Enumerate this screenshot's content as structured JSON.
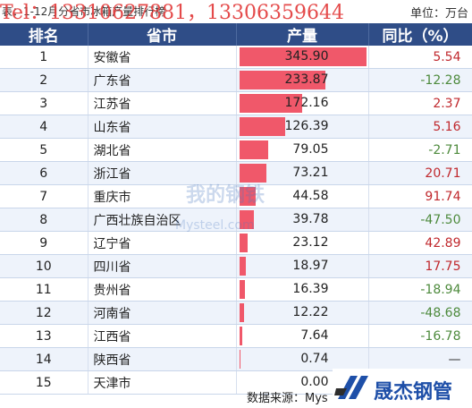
{
  "caption": {
    "title": "表：1-12月分省市冰箱产量排行榜",
    "overlay": "Tel：13310627881，13306359644",
    "unit": "单位：万台"
  },
  "headers": {
    "rank": "排名",
    "province": "省市",
    "production": "产量",
    "yoy": "同比（%）"
  },
  "colors": {
    "header_bg": "#2f4d87",
    "bar": "#f0586a",
    "positive": "#c0282d",
    "negative": "#4d8a3c"
  },
  "rows": [
    {
      "rank": "1",
      "province": "安徽省",
      "production": "345.90",
      "yoy": "5.54"
    },
    {
      "rank": "2",
      "province": "广东省",
      "production": "233.87",
      "yoy": "-12.28"
    },
    {
      "rank": "3",
      "province": "江苏省",
      "production": "172.16",
      "yoy": "2.37"
    },
    {
      "rank": "4",
      "province": "山东省",
      "production": "126.39",
      "yoy": "5.16"
    },
    {
      "rank": "5",
      "province": "湖北省",
      "production": "79.05",
      "yoy": "-2.71"
    },
    {
      "rank": "6",
      "province": "浙江省",
      "production": "73.21",
      "yoy": "20.71"
    },
    {
      "rank": "7",
      "province": "重庆市",
      "production": "44.58",
      "yoy": "91.74"
    },
    {
      "rank": "8",
      "province": "广西壮族自治区",
      "production": "39.78",
      "yoy": "-47.50"
    },
    {
      "rank": "9",
      "province": "辽宁省",
      "production": "23.12",
      "yoy": "42.89"
    },
    {
      "rank": "10",
      "province": "四川省",
      "production": "18.97",
      "yoy": "17.75"
    },
    {
      "rank": "11",
      "province": "贵州省",
      "production": "16.39",
      "yoy": "-18.94"
    },
    {
      "rank": "12",
      "province": "河南省",
      "production": "12.22",
      "yoy": "-48.68"
    },
    {
      "rank": "13",
      "province": "江西省",
      "production": "7.64",
      "yoy": "-16.78"
    },
    {
      "rank": "14",
      "province": "陕西省",
      "production": "0.74",
      "yoy": "—"
    },
    {
      "rank": "15",
      "province": "天津市",
      "production": "0.00",
      "yoy": ""
    }
  ],
  "footer": {
    "source": "数据来源：Mys"
  },
  "logo": {
    "text": "晟杰钢管"
  },
  "watermark": {
    "cn": "我的钢铁",
    "en": "Mysteel.com"
  }
}
